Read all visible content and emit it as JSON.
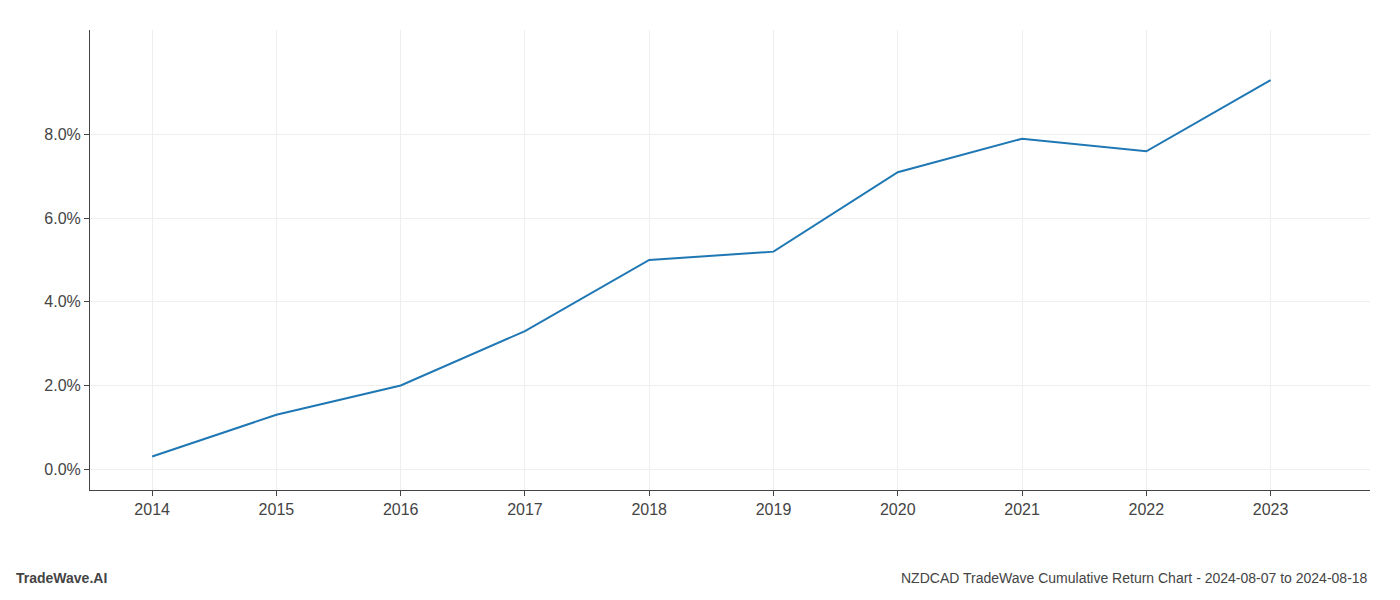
{
  "chart_data": {
    "type": "line",
    "x": [
      2014,
      2015,
      2016,
      2017,
      2018,
      2019,
      2020,
      2021,
      2022,
      2023
    ],
    "values": [
      0.003,
      0.013,
      0.02,
      0.033,
      0.05,
      0.052,
      0.071,
      0.079,
      0.076,
      0.093
    ],
    "color": "#1f77b4",
    "xlim": [
      2013.5,
      2023.8
    ],
    "xticks": [
      2014,
      2015,
      2016,
      2017,
      2018,
      2019,
      2020,
      2021,
      2022,
      2023
    ],
    "ylim": [
      -0.005,
      0.105
    ],
    "yticks": [
      {
        "value": 0.0,
        "label": "0.0%"
      },
      {
        "value": 0.02,
        "label": "2.0%"
      },
      {
        "value": 0.04,
        "label": "4.0%"
      },
      {
        "value": 0.06,
        "label": "6.0%"
      },
      {
        "value": 0.08,
        "label": "8.0%"
      }
    ],
    "grid": true,
    "annotations": [
      "TradeWave.AI",
      "NZDCAD TradeWave Cumulative Return Chart - 2024-08-07 to 2024-08-18"
    ]
  }
}
